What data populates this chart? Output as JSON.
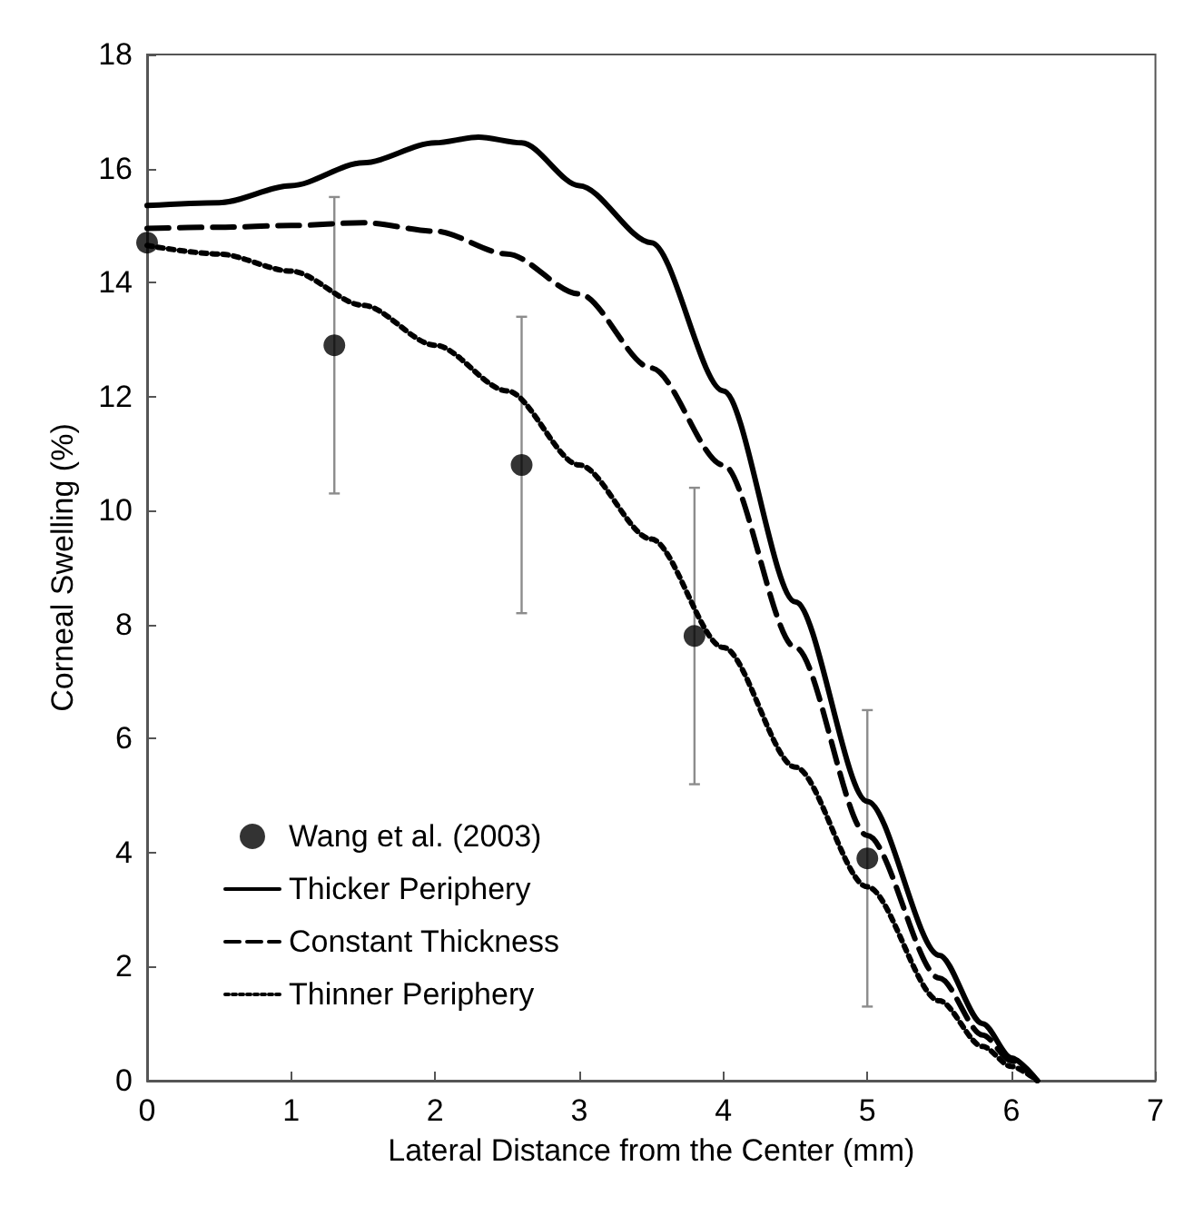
{
  "chart_data": {
    "type": "line",
    "xlabel": "Lateral Distance from the Center (mm)",
    "ylabel": "Corneal Swelling (%)",
    "xlim": [
      0,
      7
    ],
    "xticks": [
      0,
      1,
      2,
      3,
      4,
      5,
      6,
      7
    ],
    "ylim": [
      0,
      18
    ],
    "yticks": [
      0,
      2,
      4,
      6,
      8,
      10,
      12,
      14,
      16,
      18
    ],
    "grid": false,
    "legend": "bottom left",
    "series": [
      {
        "name": "Wang et al. (2003)",
        "type": "scatter",
        "marker": "circle",
        "color": "#000000",
        "x": [
          0,
          1.3,
          2.6,
          3.8,
          5.0
        ],
        "values": [
          14.7,
          12.9,
          10.8,
          7.8,
          3.9
        ],
        "errors": [
          null,
          2.6,
          2.6,
          2.6,
          2.6
        ]
      },
      {
        "name": "Thicker Periphery",
        "line_style": "solid",
        "marker": "none",
        "color": "#000000",
        "x": [
          0,
          0.5,
          1,
          1.5,
          2,
          2.3,
          2.6,
          3,
          3.5,
          4,
          4.5,
          5,
          5.5,
          5.8,
          6,
          6.18
        ],
        "values": [
          15.35,
          15.4,
          15.7,
          16.1,
          16.45,
          16.55,
          16.45,
          15.7,
          14.7,
          12.1,
          8.4,
          4.9,
          2.2,
          1.0,
          0.4,
          0
        ]
      },
      {
        "name": "Constant Thickness",
        "line_style": "dashed",
        "marker": "none",
        "color": "#000000",
        "x": [
          0,
          0.5,
          1,
          1.5,
          2,
          2.5,
          3,
          3.5,
          4,
          4.5,
          5,
          5.5,
          5.8,
          6,
          6.18
        ],
        "values": [
          14.95,
          14.97,
          15.0,
          15.05,
          14.9,
          14.5,
          13.8,
          12.5,
          10.8,
          7.6,
          4.3,
          1.8,
          0.8,
          0.35,
          0
        ]
      },
      {
        "name": "Thinner Periphery",
        "line_style": "dotted",
        "marker": "none",
        "color": "#000000",
        "x": [
          0,
          0.5,
          1,
          1.5,
          2,
          2.5,
          3,
          3.5,
          4,
          4.5,
          5,
          5.5,
          5.8,
          6,
          6.18
        ],
        "values": [
          14.65,
          14.5,
          14.2,
          13.6,
          12.9,
          12.1,
          10.8,
          9.5,
          7.6,
          5.5,
          3.4,
          1.4,
          0.6,
          0.25,
          0
        ]
      }
    ]
  }
}
